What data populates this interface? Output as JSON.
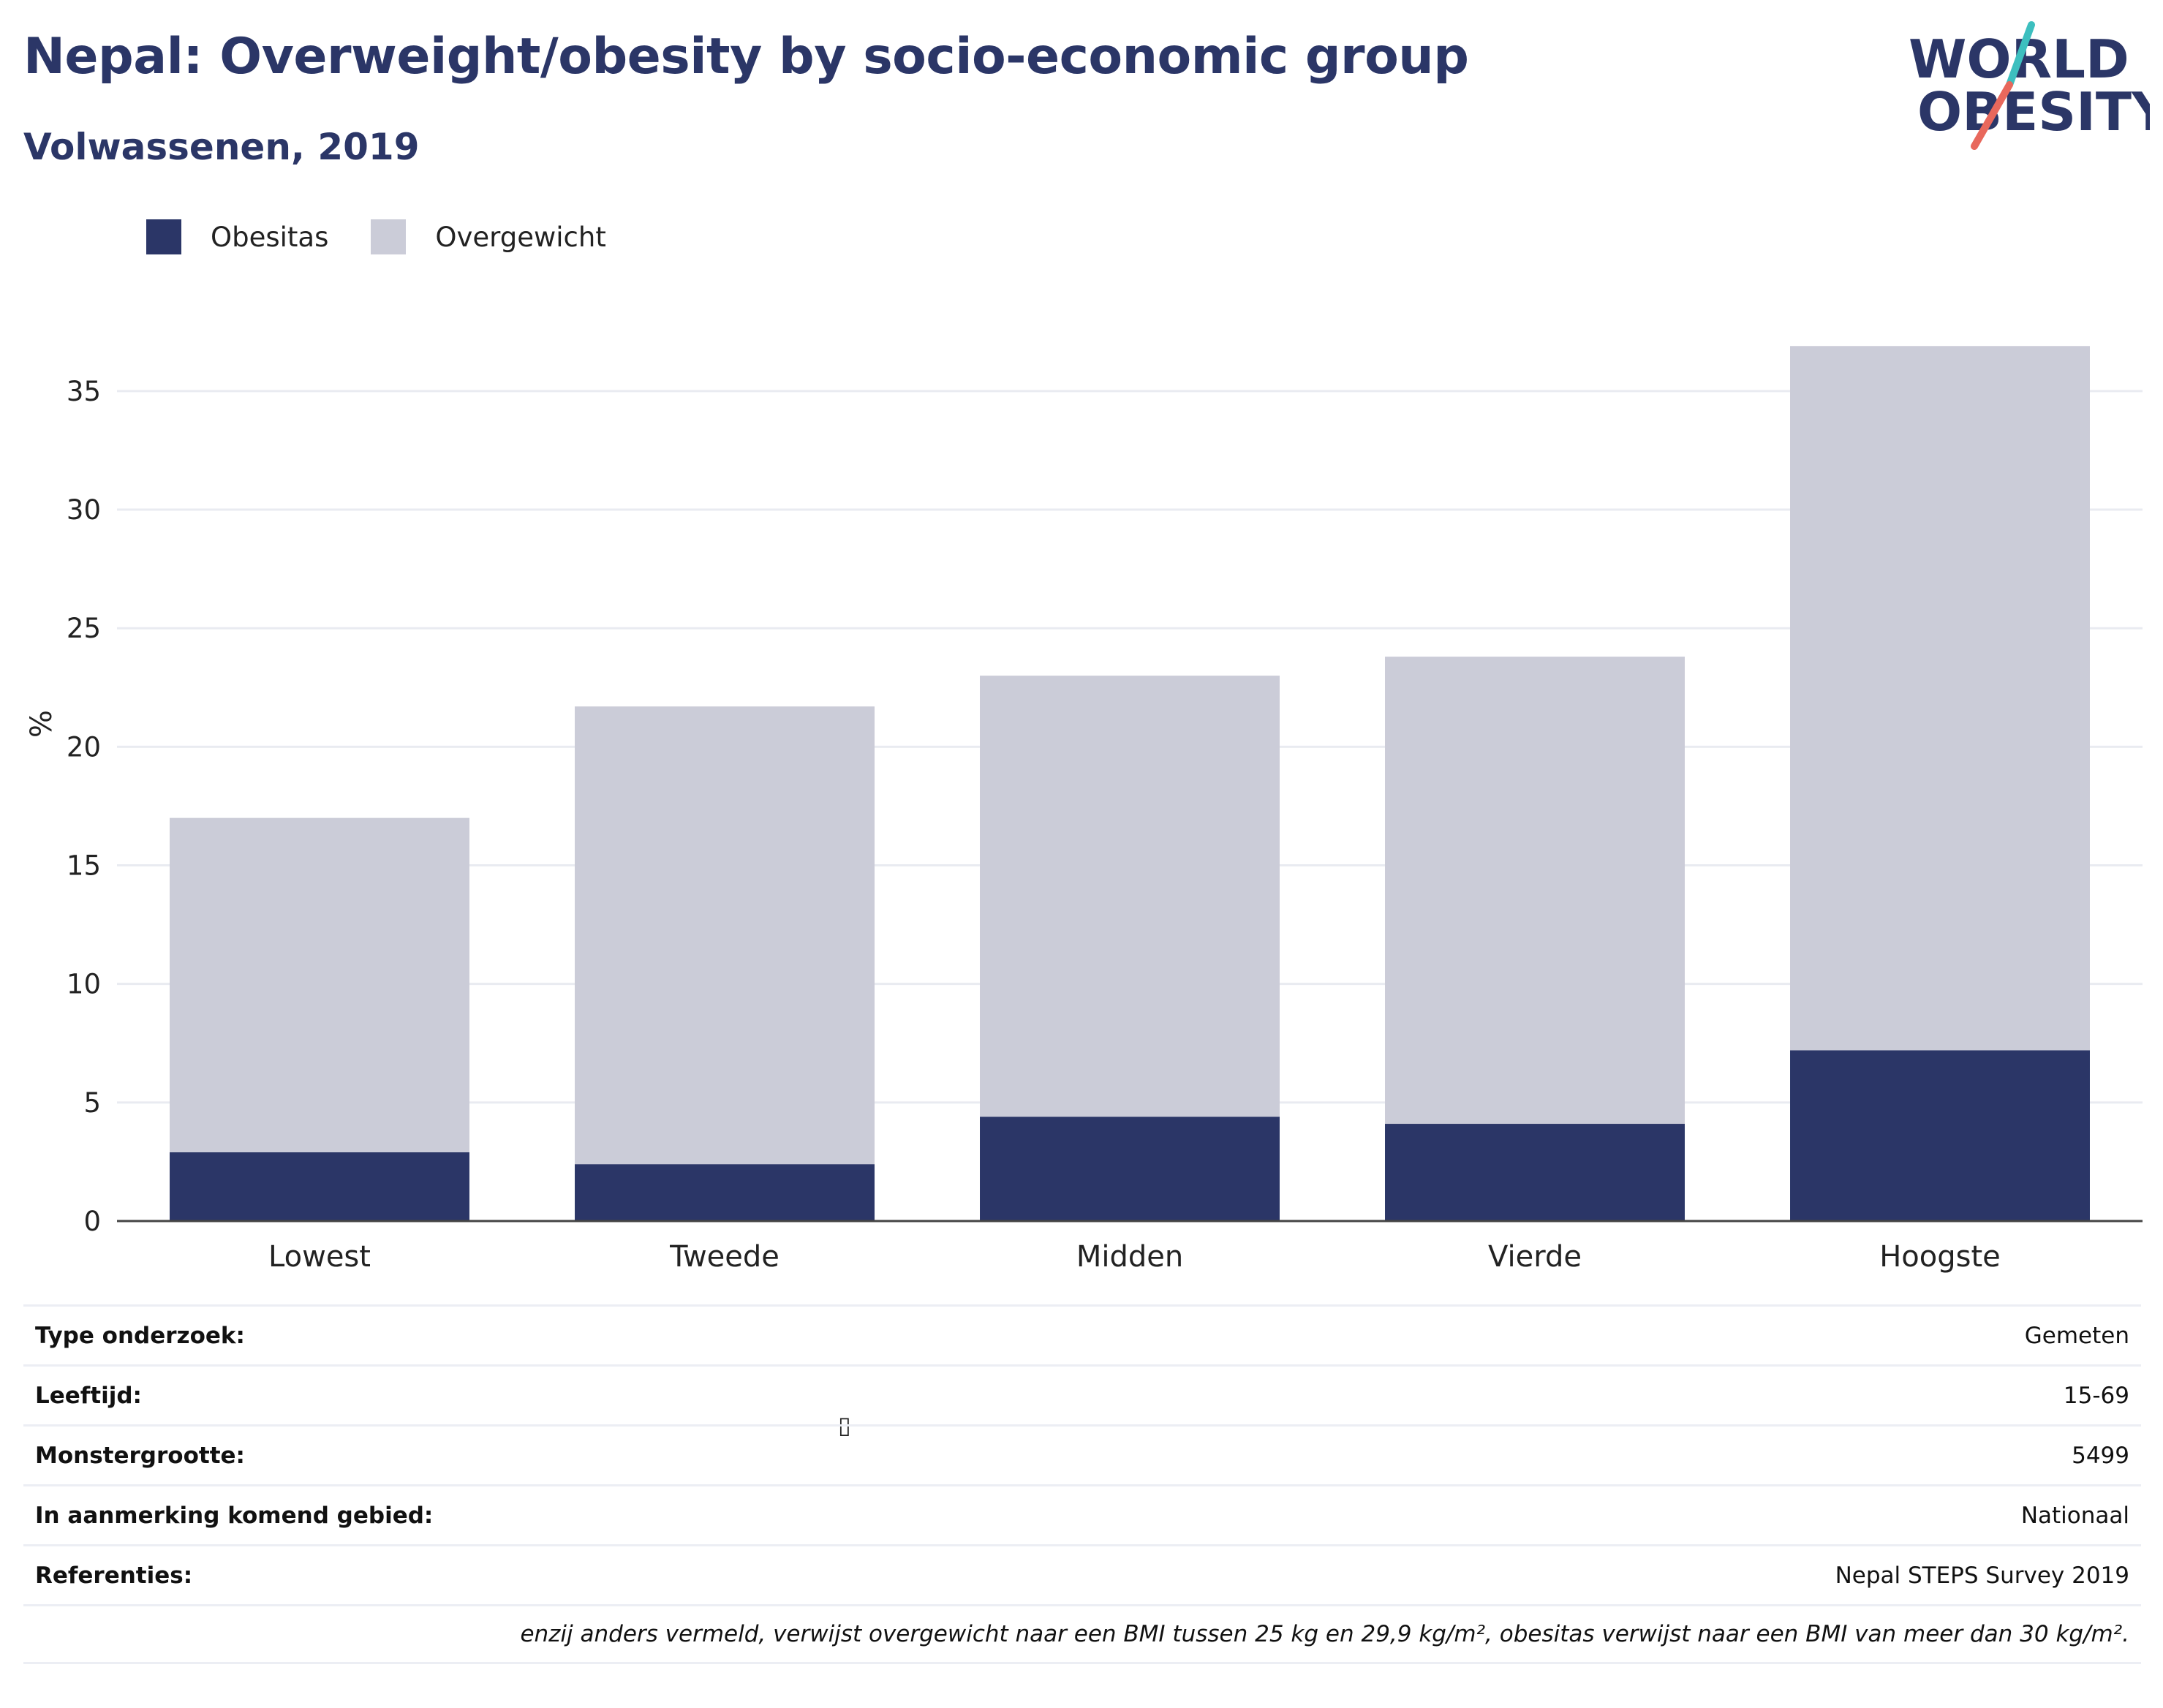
{
  "title": "Nepal: Overweight/obesity by socio-economic group",
  "subtitle": "Volwassenen, 2019",
  "logo": {
    "line1": "WORLD",
    "line2": "OBESITY",
    "accent_colors": [
      "#3dbfbf",
      "#e8685c"
    ]
  },
  "colors": {
    "obesitas": "#2b3667",
    "overgewicht": "#cbccd8",
    "text": "#2b3667"
  },
  "chart_data": {
    "type": "bar",
    "stacked": true,
    "categories": [
      "Lowest",
      "Tweede",
      "Midden",
      "Vierde",
      "Hoogste"
    ],
    "series": [
      {
        "name": "Obesitas",
        "values": [
          2.9,
          2.4,
          4.4,
          4.1,
          7.2
        ]
      },
      {
        "name": "Overgewicht",
        "values": [
          14.1,
          19.3,
          18.6,
          19.7,
          29.7
        ]
      }
    ],
    "ylabel": "%",
    "xlabel": "",
    "ylim": [
      0,
      37
    ],
    "yticks": [
      0,
      5,
      10,
      15,
      20,
      25,
      30,
      35
    ],
    "grid": true,
    "legend_position": "top-left"
  },
  "info": [
    {
      "key": "Type onderzoek:",
      "value": "Gemeten"
    },
    {
      "key": "Leeftijd:",
      "value": "15-69"
    },
    {
      "key": "Monstergrootte:",
      "value": "5499"
    },
    {
      "key": "In aanmerking komend gebied:",
      "value": "Nationaal"
    },
    {
      "key": "Referenties:",
      "value": "Nepal STEPS Survey 2019"
    }
  ],
  "footnote": "enzij anders vermeld, verwijst overgewicht naar een BMI tussen 25 kg en 29,9 kg/m², obesitas verwijst naar een BMI van meer dan 30 kg/m².",
  "stray_glyph": "▯"
}
